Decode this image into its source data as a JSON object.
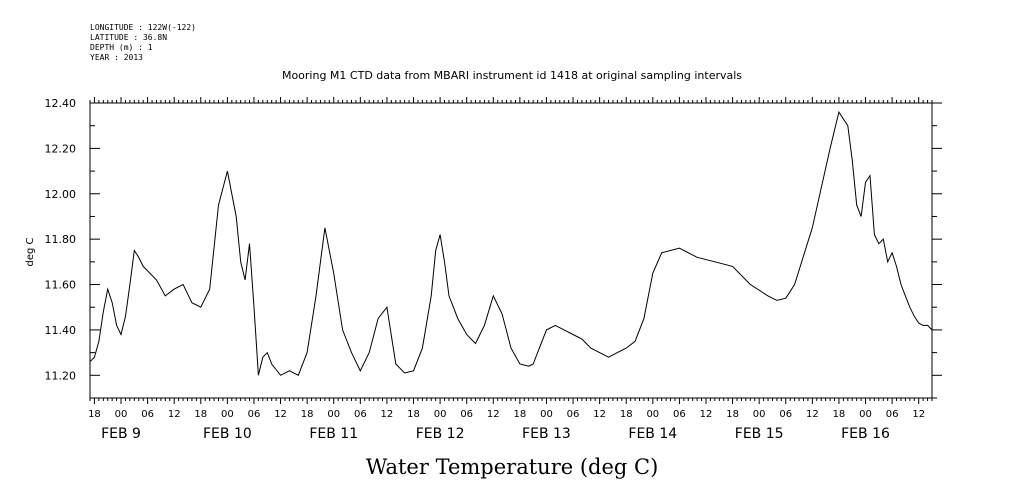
{
  "metadata": {
    "longitude": "LONGITUDE : 122W(-122)",
    "latitude": "LATITUDE : 36.8N",
    "depth": "DEPTH (m) : 1",
    "year": "YEAR : 2013"
  },
  "chart_data": {
    "type": "line",
    "title": "Mooring M1 CTD data from MBARI instrument id 1418 at original sampling intervals",
    "xlabel": "Water Temperature (deg C)",
    "ylabel": "deg C",
    "ylim": [
      11.1,
      12.4
    ],
    "xlim": [
      "2013-02-08T17:00",
      "2013-02-16T15:00"
    ],
    "yticks": [
      "11.20",
      "11.40",
      "11.60",
      "11.80",
      "12.00",
      "12.20",
      "12.40"
    ],
    "xtick_hour_labels": [
      "18",
      "00",
      "06",
      "12",
      "18",
      "00",
      "06",
      "12",
      "18",
      "00",
      "06",
      "12",
      "18",
      "00",
      "06",
      "12",
      "18",
      "00",
      "06",
      "12",
      "18",
      "00",
      "06",
      "12",
      "18",
      "00",
      "06",
      "12",
      "18",
      "00",
      "06",
      "12"
    ],
    "day_labels": [
      "FEB  9",
      "FEB 10",
      "FEB 11",
      "FEB 12",
      "FEB 13",
      "FEB 14",
      "FEB 15",
      "FEB 16"
    ],
    "grid": false,
    "series": [
      {
        "color": "#000000",
        "x": [
          "2013-02-08T17:00",
          "2013-02-08T18:00",
          "2013-02-08T19:00",
          "2013-02-08T20:00",
          "2013-02-08T21:00",
          "2013-02-08T22:00",
          "2013-02-08T23:00",
          "2013-02-09T00:00",
          "2013-02-09T01:00",
          "2013-02-09T02:00",
          "2013-02-09T03:00",
          "2013-02-09T04:00",
          "2013-02-09T05:00",
          "2013-02-09T06:00",
          "2013-02-09T08:00",
          "2013-02-09T10:00",
          "2013-02-09T12:00",
          "2013-02-09T14:00",
          "2013-02-09T16:00",
          "2013-02-09T18:00",
          "2013-02-09T20:00",
          "2013-02-09T22:00",
          "2013-02-10T00:00",
          "2013-02-10T02:00",
          "2013-02-10T03:00",
          "2013-02-10T04:00",
          "2013-02-10T05:00",
          "2013-02-10T06:00",
          "2013-02-10T07:00",
          "2013-02-10T08:00",
          "2013-02-10T09:00",
          "2013-02-10T10:00",
          "2013-02-10T12:00",
          "2013-02-10T14:00",
          "2013-02-10T16:00",
          "2013-02-10T18:00",
          "2013-02-10T20:00",
          "2013-02-10T22:00",
          "2013-02-11T00:00",
          "2013-02-11T02:00",
          "2013-02-11T04:00",
          "2013-02-11T06:00",
          "2013-02-11T08:00",
          "2013-02-11T10:00",
          "2013-02-11T12:00",
          "2013-02-11T14:00",
          "2013-02-11T16:00",
          "2013-02-11T18:00",
          "2013-02-11T20:00",
          "2013-02-11T22:00",
          "2013-02-11T23:00",
          "2013-02-12T00:00",
          "2013-02-12T01:00",
          "2013-02-12T02:00",
          "2013-02-12T04:00",
          "2013-02-12T06:00",
          "2013-02-12T08:00",
          "2013-02-12T10:00",
          "2013-02-12T12:00",
          "2013-02-12T14:00",
          "2013-02-12T16:00",
          "2013-02-12T18:00",
          "2013-02-12T20:00",
          "2013-02-12T21:00",
          "2013-02-12T22:00",
          "2013-02-13T00:00",
          "2013-02-13T02:00",
          "2013-02-13T04:00",
          "2013-02-13T06:00",
          "2013-02-13T08:00",
          "2013-02-13T09:00",
          "2013-02-13T10:00",
          "2013-02-13T12:00",
          "2013-02-13T14:00",
          "2013-02-13T16:00",
          "2013-02-13T18:00",
          "2013-02-13T20:00",
          "2013-02-13T22:00",
          "2013-02-14T00:00",
          "2013-02-14T02:00",
          "2013-02-14T06:00",
          "2013-02-14T10:00",
          "2013-02-14T14:00",
          "2013-02-14T18:00",
          "2013-02-14T22:00",
          "2013-02-15T02:00",
          "2013-02-15T04:00",
          "2013-02-15T06:00",
          "2013-02-15T08:00",
          "2013-02-15T12:00",
          "2013-02-15T16:00",
          "2013-02-15T18:00",
          "2013-02-15T20:00",
          "2013-02-15T21:00",
          "2013-02-15T22:00",
          "2013-02-15T23:00",
          "2013-02-16T00:00",
          "2013-02-16T01:00",
          "2013-02-16T02:00",
          "2013-02-16T03:00",
          "2013-02-16T04:00",
          "2013-02-16T05:00",
          "2013-02-16T06:00",
          "2013-02-16T07:00",
          "2013-02-16T08:00",
          "2013-02-16T09:00",
          "2013-02-16T10:00",
          "2013-02-16T11:00",
          "2013-02-16T12:00",
          "2013-02-16T13:00",
          "2013-02-16T14:00",
          "2013-02-16T15:00"
        ],
        "y": [
          11.26,
          11.28,
          11.35,
          11.48,
          11.58,
          11.52,
          11.42,
          11.38,
          11.46,
          11.6,
          11.75,
          11.72,
          11.68,
          11.66,
          11.62,
          11.55,
          11.58,
          11.6,
          11.52,
          11.5,
          11.58,
          11.95,
          12.1,
          11.9,
          11.7,
          11.62,
          11.78,
          11.5,
          11.2,
          11.28,
          11.3,
          11.25,
          11.2,
          11.22,
          11.2,
          11.3,
          11.55,
          11.85,
          11.65,
          11.4,
          11.3,
          11.22,
          11.3,
          11.45,
          11.5,
          11.25,
          11.21,
          11.22,
          11.32,
          11.55,
          11.75,
          11.82,
          11.7,
          11.55,
          11.45,
          11.38,
          11.34,
          11.42,
          11.55,
          11.47,
          11.32,
          11.25,
          11.24,
          11.25,
          11.3,
          11.4,
          11.42,
          11.4,
          11.38,
          11.36,
          11.34,
          11.32,
          11.3,
          11.28,
          11.3,
          11.32,
          11.35,
          11.45,
          11.65,
          11.74,
          11.76,
          11.72,
          11.7,
          11.68,
          11.6,
          11.55,
          11.53,
          11.54,
          11.6,
          11.85,
          12.2,
          12.36,
          12.3,
          12.15,
          11.95,
          11.9,
          12.05,
          12.08,
          11.82,
          11.78,
          11.8,
          11.7,
          11.74,
          11.68,
          11.6,
          11.55,
          11.5,
          11.46,
          11.43,
          11.42,
          11.42,
          11.4
        ]
      }
    ]
  }
}
